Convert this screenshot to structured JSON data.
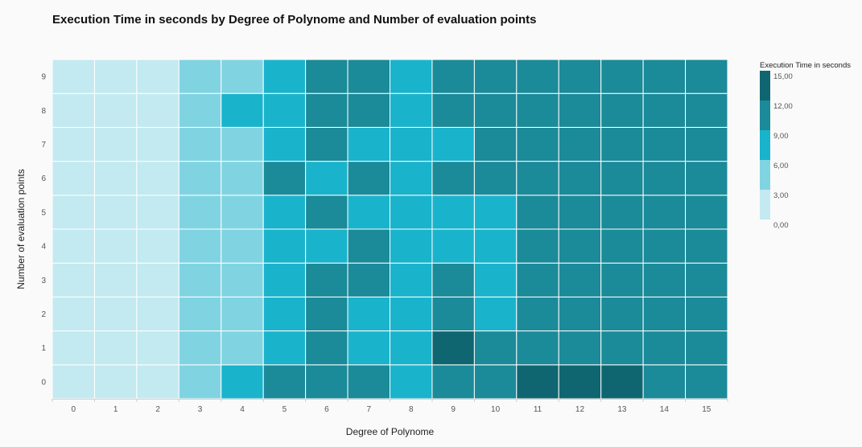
{
  "chart_data": {
    "type": "heatmap",
    "title": "Execution Time in seconds by Degree of Polynome and Number of evaluation points",
    "xlabel": "Degree of Polynome",
    "ylabel": "Number of evaluation points",
    "x_categories": [
      "0",
      "1",
      "2",
      "3",
      "4",
      "5",
      "6",
      "7",
      "8",
      "9",
      "10",
      "11",
      "12",
      "13",
      "14",
      "15"
    ],
    "y_categories": [
      "0",
      "1",
      "2",
      "3",
      "4",
      "5",
      "6",
      "7",
      "8",
      "9"
    ],
    "values": [
      [
        1.5,
        1.5,
        1.5,
        4.5,
        7.5,
        10.5,
        10.5,
        10.5,
        7.5,
        10.5,
        10.5,
        13.5,
        13.5,
        13.5,
        10.5,
        10.5
      ],
      [
        1.5,
        1.5,
        1.5,
        4.5,
        4.5,
        7.5,
        10.5,
        7.5,
        7.5,
        13.5,
        10.5,
        10.5,
        10.5,
        10.5,
        10.5,
        10.5
      ],
      [
        1.5,
        1.5,
        1.5,
        4.5,
        4.5,
        7.5,
        10.5,
        7.5,
        7.5,
        10.5,
        7.5,
        10.5,
        10.5,
        10.5,
        10.5,
        10.5
      ],
      [
        1.5,
        1.5,
        1.5,
        4.5,
        4.5,
        7.5,
        10.5,
        10.5,
        7.5,
        10.5,
        7.5,
        10.5,
        10.5,
        10.5,
        10.5,
        10.5
      ],
      [
        1.5,
        1.5,
        1.5,
        4.5,
        4.5,
        7.5,
        7.5,
        10.5,
        7.5,
        7.5,
        7.5,
        10.5,
        10.5,
        10.5,
        10.5,
        10.5
      ],
      [
        1.5,
        1.5,
        1.5,
        4.5,
        4.5,
        7.5,
        10.5,
        7.5,
        7.5,
        7.5,
        7.5,
        10.5,
        10.5,
        10.5,
        10.5,
        10.5
      ],
      [
        1.5,
        1.5,
        1.5,
        4.5,
        4.5,
        10.5,
        7.5,
        10.5,
        7.5,
        10.5,
        10.5,
        10.5,
        10.5,
        10.5,
        10.5,
        10.5
      ],
      [
        1.5,
        1.5,
        1.5,
        4.5,
        4.5,
        7.5,
        10.5,
        7.5,
        7.5,
        7.5,
        10.5,
        10.5,
        10.5,
        10.5,
        10.5,
        10.5
      ],
      [
        1.5,
        1.5,
        1.5,
        4.5,
        7.5,
        7.5,
        10.5,
        10.5,
        7.5,
        10.5,
        10.5,
        10.5,
        10.5,
        10.5,
        10.5,
        10.5
      ],
      [
        1.5,
        1.5,
        1.5,
        4.5,
        4.5,
        7.5,
        10.5,
        10.5,
        7.5,
        10.5,
        10.5,
        10.5,
        10.5,
        10.5,
        10.5,
        10.5
      ]
    ],
    "color_scale": {
      "title": "Execution Time in seconds",
      "bins": [
        {
          "min": 0,
          "max": 3,
          "color": "#c2eaf0"
        },
        {
          "min": 3,
          "max": 6,
          "color": "#80d4e2"
        },
        {
          "min": 6,
          "max": 9,
          "color": "#1ab3cc"
        },
        {
          "min": 9,
          "max": 12,
          "color": "#1b8a99"
        },
        {
          "min": 12,
          "max": 15,
          "color": "#0f6670"
        }
      ],
      "tick_labels": [
        "0,00",
        "3,00",
        "6,00",
        "9,00",
        "12,00",
        "15,00"
      ]
    },
    "grid_color": "#ffffff",
    "legend_placement": "right"
  }
}
